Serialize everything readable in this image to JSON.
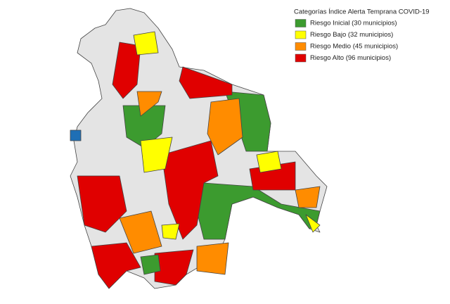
{
  "legend": {
    "title": "Categorías Índice Alerta Temprana COVID-19",
    "items": [
      {
        "label": "Riesgo Inicial (30 municipios)",
        "color": "#3c9b2f"
      },
      {
        "label": "Riesgo Bajo (32 municipios)",
        "color": "#ffff00"
      },
      {
        "label": "Riesgo Medio (45 municipios)",
        "color": "#ff8c00"
      },
      {
        "label": "Riesgo Alto (96 municipios)",
        "color": "#e00000"
      }
    ]
  }
}
